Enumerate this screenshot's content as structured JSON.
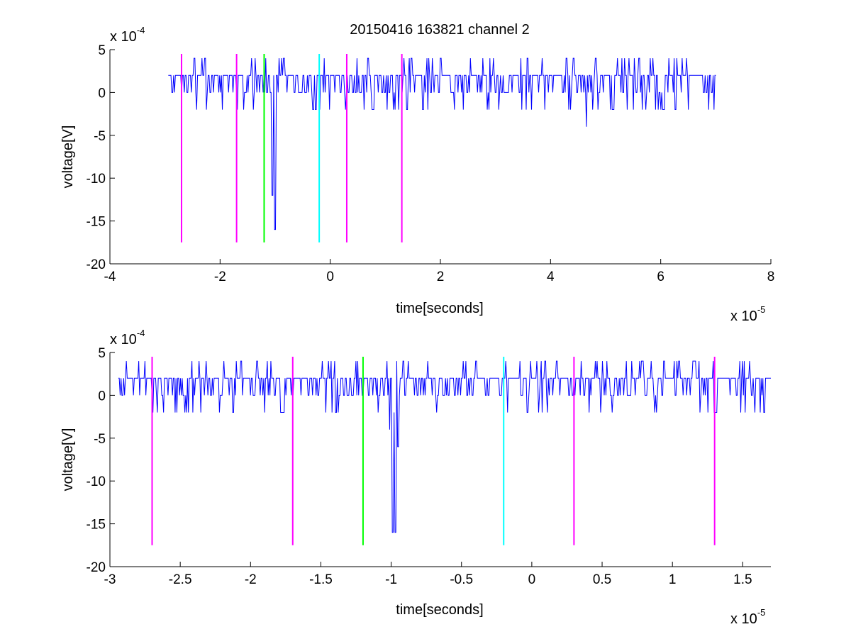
{
  "chart_data": {
    "title": "20150416 163821 channel 2",
    "colors": {
      "signal": "#0000ff",
      "magenta_marker": "#ff00ff",
      "green_marker": "#00ff00",
      "cyan_marker": "#00ffff",
      "axis": "#000000"
    },
    "panels": [
      {
        "type": "line",
        "xlabel": "time[seconds]",
        "ylabel": "voltage[V]",
        "x_multiplier_base": "x 10",
        "x_multiplier_exp": "-5",
        "y_multiplier_base": "x 10",
        "y_multiplier_exp": "-4",
        "xlim": [
          -4,
          8
        ],
        "ylim": [
          -20,
          5
        ],
        "xticks": [
          -4,
          -2,
          0,
          2,
          4,
          6,
          8
        ],
        "xtick_labels": [
          "-4",
          "-2",
          "0",
          "2",
          "4",
          "6",
          "8"
        ],
        "yticks": [
          5,
          0,
          -5,
          -10,
          -15,
          -20
        ],
        "ytick_labels": [
          "5",
          "0",
          "-5",
          "-10",
          "-15",
          "-20"
        ],
        "grid": false,
        "signal": {
          "x_start": -2.94,
          "x_end": 7.0,
          "seed": 11,
          "events": [
            {
              "x": -1.05,
              "y": -12
            },
            {
              "x": -1.0,
              "y": -16
            },
            {
              "x": 4.65,
              "y": -4
            }
          ]
        },
        "markers": [
          {
            "x": -2.7,
            "color": "magenta",
            "y_top": 4.5,
            "y_bottom": -17.5
          },
          {
            "x": -1.7,
            "color": "magenta",
            "y_top": 4.5,
            "y_bottom": -17.5
          },
          {
            "x": -1.2,
            "color": "green",
            "y_top": 4.5,
            "y_bottom": -17.5
          },
          {
            "x": -0.2,
            "color": "cyan",
            "y_top": 4.5,
            "y_bottom": -17.5
          },
          {
            "x": 0.3,
            "color": "magenta",
            "y_top": 4.5,
            "y_bottom": -17.5
          },
          {
            "x": 1.3,
            "color": "magenta",
            "y_top": 4.5,
            "y_bottom": -17.5
          }
        ]
      },
      {
        "type": "line",
        "xlabel": "time[seconds]",
        "ylabel": "voltage[V]",
        "x_multiplier_base": "x 10",
        "x_multiplier_exp": "-5",
        "y_multiplier_base": "x 10",
        "y_multiplier_exp": "-4",
        "xlim": [
          -3.0,
          1.7
        ],
        "ylim": [
          -20,
          5
        ],
        "xticks": [
          -3,
          -2.5,
          -2,
          -1.5,
          -1,
          -0.5,
          0,
          0.5,
          1,
          1.5
        ],
        "xtick_labels": [
          "-3",
          "-2.5",
          "-2",
          "-1.5",
          "-1",
          "-0.5",
          "0",
          "0.5",
          "1",
          "1.5"
        ],
        "yticks": [
          5,
          0,
          -5,
          -10,
          -15,
          -20
        ],
        "ytick_labels": [
          "5",
          "0",
          "-5",
          "-10",
          "-15",
          "-20"
        ],
        "grid": false,
        "signal": {
          "x_start": -2.94,
          "x_end": 1.7,
          "seed": 23,
          "events": [
            {
              "x": -1.01,
              "y": -4
            },
            {
              "x": -0.99,
              "y": -16
            },
            {
              "x": -0.97,
              "y": -16
            },
            {
              "x": -0.95,
              "y": -6
            }
          ]
        },
        "markers": [
          {
            "x": -2.7,
            "color": "magenta",
            "y_top": 4.5,
            "y_bottom": -17.5
          },
          {
            "x": -1.7,
            "color": "magenta",
            "y_top": 4.5,
            "y_bottom": -17.5
          },
          {
            "x": -1.2,
            "color": "green",
            "y_top": 4.5,
            "y_bottom": -17.5
          },
          {
            "x": -0.2,
            "color": "cyan",
            "y_top": 4.5,
            "y_bottom": -17.5
          },
          {
            "x": 0.3,
            "color": "magenta",
            "y_top": 4.5,
            "y_bottom": -17.5
          },
          {
            "x": 1.3,
            "color": "magenta",
            "y_top": 4.5,
            "y_bottom": -17.5
          }
        ]
      }
    ]
  }
}
